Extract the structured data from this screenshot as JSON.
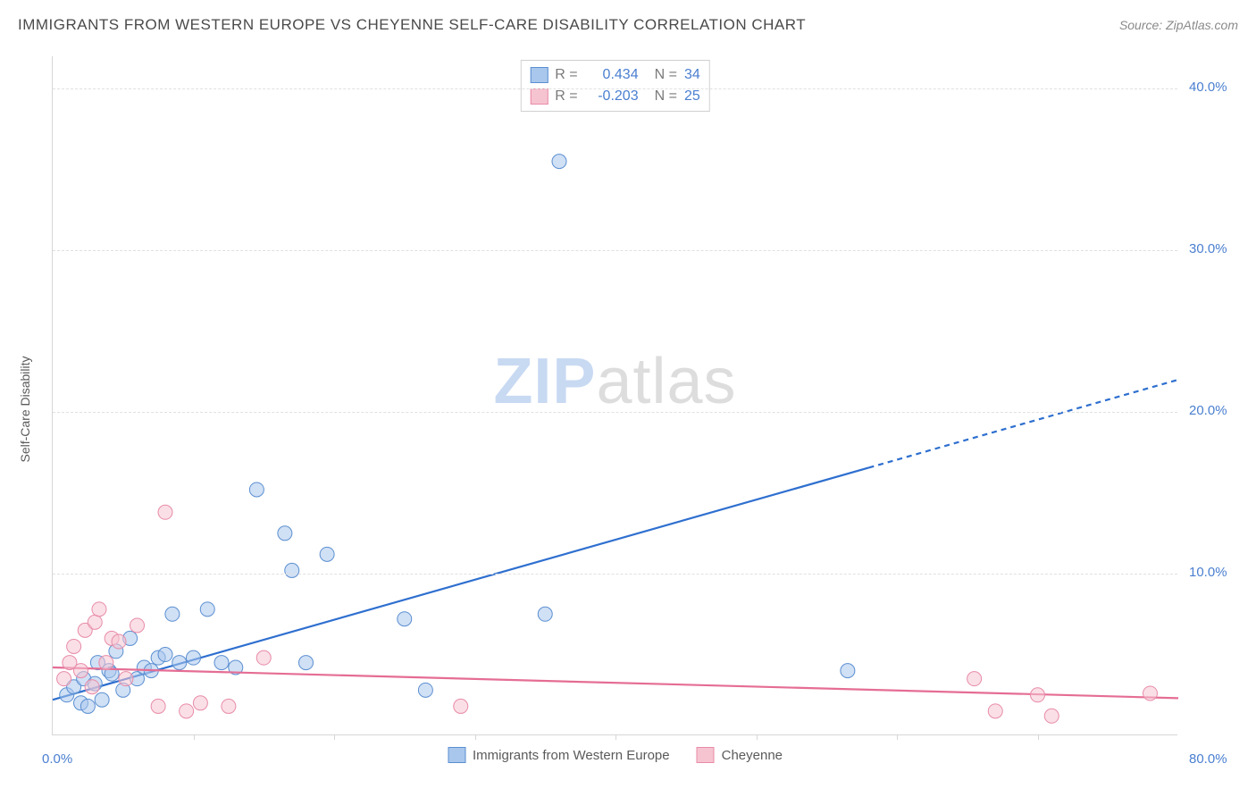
{
  "title": "IMMIGRANTS FROM WESTERN EUROPE VS CHEYENNE SELF-CARE DISABILITY CORRELATION CHART",
  "source": "Source: ZipAtlas.com",
  "yaxis_label": "Self-Care Disability",
  "watermark": {
    "zip": "ZIP",
    "atlas": "atlas"
  },
  "chart": {
    "type": "scatter",
    "xlim": [
      0,
      80
    ],
    "ylim": [
      0,
      42
    ],
    "y_gridlines": [
      10,
      20,
      30,
      40
    ],
    "y_tick_labels": [
      "10.0%",
      "20.0%",
      "30.0%",
      "40.0%"
    ],
    "x_ticks": [
      10,
      20,
      30,
      40,
      50,
      60,
      70
    ],
    "x_tick_labels": {
      "min": "0.0%",
      "max": "80.0%"
    },
    "background_color": "#ffffff",
    "grid_color": "#e0e0e0",
    "axis_color": "#d6d6d6",
    "tick_label_color": "#4a7fd0",
    "marker_radius": 8,
    "marker_opacity": 0.55,
    "series": [
      {
        "name": "Immigrants from Western Europe",
        "color_fill": "#a9c7ec",
        "color_stroke": "#5b8fd1",
        "line_color": "#2e6fcf",
        "line_width": 2.2,
        "line_dash_from_x": 58,
        "regression": {
          "x1": 0,
          "y1": 2.2,
          "x2": 80,
          "y2": 22.0
        },
        "points": [
          [
            1.0,
            2.5
          ],
          [
            1.5,
            3.0
          ],
          [
            2.0,
            2.0
          ],
          [
            2.2,
            3.5
          ],
          [
            2.5,
            1.8
          ],
          [
            3.0,
            3.2
          ],
          [
            3.2,
            4.5
          ],
          [
            3.5,
            2.2
          ],
          [
            4.0,
            4.0
          ],
          [
            4.2,
            3.8
          ],
          [
            4.5,
            5.2
          ],
          [
            5.0,
            2.8
          ],
          [
            5.5,
            6.0
          ],
          [
            6.0,
            3.5
          ],
          [
            6.5,
            4.2
          ],
          [
            7.0,
            4.0
          ],
          [
            7.5,
            4.8
          ],
          [
            8.0,
            5.0
          ],
          [
            8.5,
            7.5
          ],
          [
            9.0,
            4.5
          ],
          [
            10.0,
            4.8
          ],
          [
            11.0,
            7.8
          ],
          [
            12.0,
            4.5
          ],
          [
            13.0,
            4.2
          ],
          [
            14.5,
            15.2
          ],
          [
            16.5,
            12.5
          ],
          [
            17.0,
            10.2
          ],
          [
            18.0,
            4.5
          ],
          [
            19.5,
            11.2
          ],
          [
            25.0,
            7.2
          ],
          [
            26.5,
            2.8
          ],
          [
            35.0,
            7.5
          ],
          [
            36.0,
            35.5
          ],
          [
            56.5,
            4.0
          ]
        ]
      },
      {
        "name": "Cheyenne",
        "color_fill": "#f6c4d1",
        "color_stroke": "#e88ba8",
        "line_color": "#e56d94",
        "line_width": 2.2,
        "regression": {
          "x1": 0,
          "y1": 4.2,
          "x2": 80,
          "y2": 2.3
        },
        "points": [
          [
            0.8,
            3.5
          ],
          [
            1.2,
            4.5
          ],
          [
            1.5,
            5.5
          ],
          [
            2.0,
            4.0
          ],
          [
            2.3,
            6.5
          ],
          [
            2.8,
            3.0
          ],
          [
            3.0,
            7.0
          ],
          [
            3.3,
            7.8
          ],
          [
            3.8,
            4.5
          ],
          [
            4.2,
            6.0
          ],
          [
            4.7,
            5.8
          ],
          [
            5.2,
            3.5
          ],
          [
            6.0,
            6.8
          ],
          [
            7.5,
            1.8
          ],
          [
            8.0,
            13.8
          ],
          [
            9.5,
            1.5
          ],
          [
            10.5,
            2.0
          ],
          [
            12.5,
            1.8
          ],
          [
            15.0,
            4.8
          ],
          [
            29.0,
            1.8
          ],
          [
            65.5,
            3.5
          ],
          [
            67.0,
            1.5
          ],
          [
            70.0,
            2.5
          ],
          [
            71.0,
            1.2
          ],
          [
            78.0,
            2.6
          ]
        ]
      }
    ]
  },
  "stats_legend": [
    {
      "swatch_fill": "#a9c7ec",
      "swatch_stroke": "#5b8fd1",
      "r_label": "R =",
      "r_value": "0.434",
      "n_label": "N =",
      "n_value": "34"
    },
    {
      "swatch_fill": "#f6c4d1",
      "swatch_stroke": "#e88ba8",
      "r_label": "R =",
      "r_value": "-0.203",
      "n_label": "N =",
      "n_value": "25"
    }
  ],
  "bottom_legend": [
    {
      "swatch_fill": "#a9c7ec",
      "swatch_stroke": "#5b8fd1",
      "label": "Immigrants from Western Europe"
    },
    {
      "swatch_fill": "#f6c4d1",
      "swatch_stroke": "#e88ba8",
      "label": "Cheyenne"
    }
  ]
}
